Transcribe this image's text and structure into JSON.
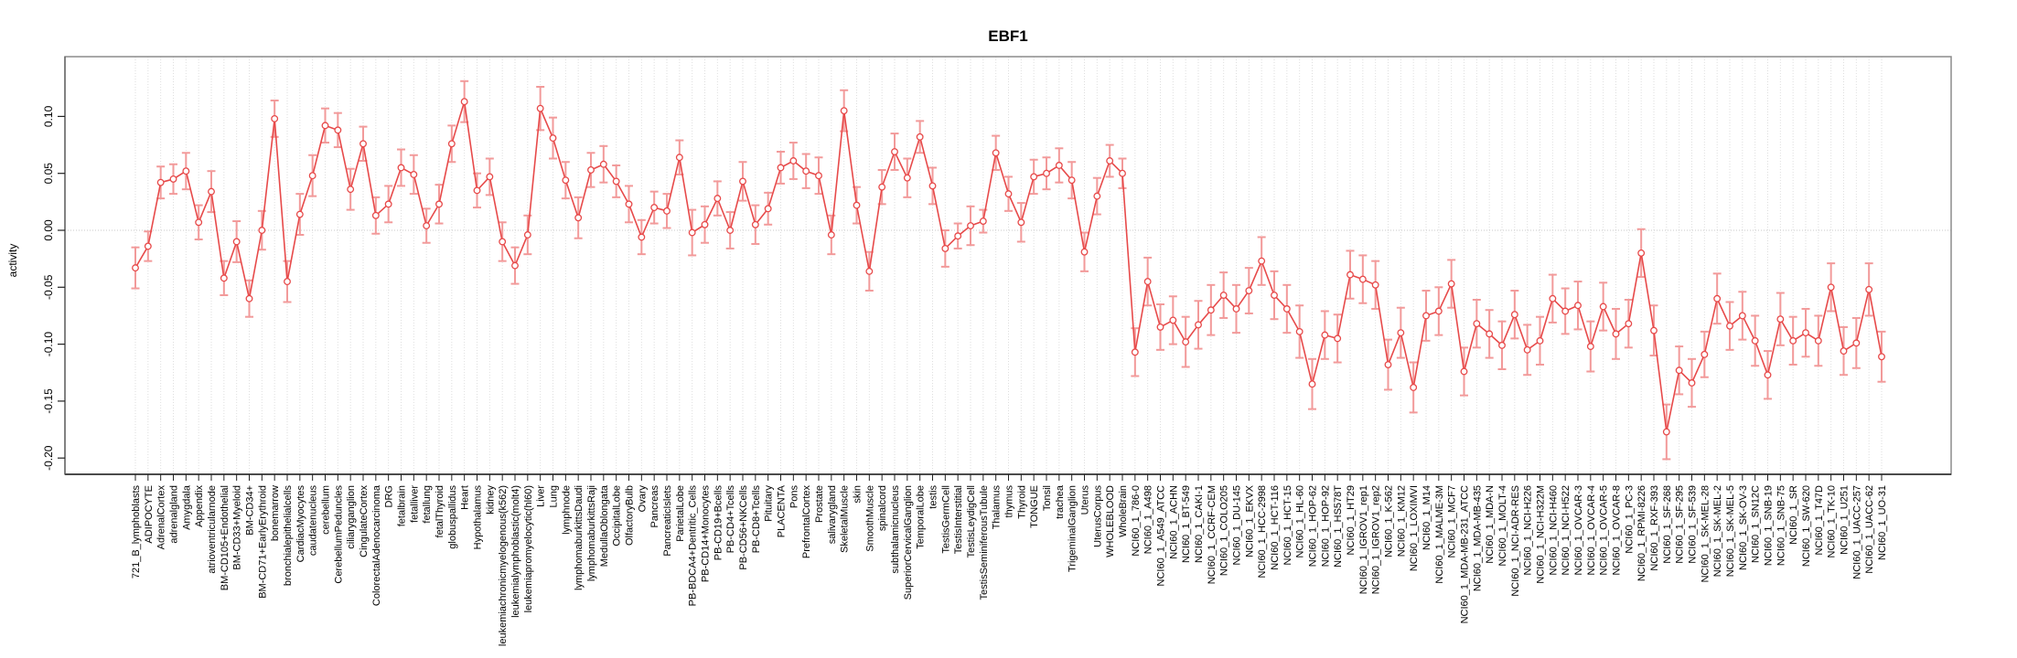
{
  "chart_data": {
    "type": "line",
    "title": "EBF1",
    "xlabel": "",
    "ylabel": "activity",
    "yticks": [
      0.1,
      0.05,
      0.0,
      -0.05,
      -0.1,
      -0.15,
      -0.2
    ],
    "ylim": [
      -0.21,
      0.152
    ],
    "grid": {
      "vertical_dotted_per_category": true,
      "horizontal_dotted_zero_line": true
    },
    "error_bars": true,
    "legend": "none",
    "point_style": "open-circle",
    "colors": {
      "series": "#e74a4a",
      "error_bar": "#f29a9a",
      "point_fill": "#ffffff",
      "grid": "#dedede",
      "zero_line": "#c8c8c8",
      "frame": "#8c8c8c",
      "axis": "#222222",
      "text": "#000000"
    },
    "categories": [
      "721_B_lymphoblasts",
      "ADIPOCYTE",
      "AdrenalCortex",
      "adrenalgland",
      "Amygdala",
      "Appendix",
      "atrioventricularnode",
      "BM-CD105+Endothelial",
      "BM-CD33+Myeloid",
      "BM-CD34+",
      "BM-CD71+EarlyErythroid",
      "bonemarrow",
      "bronchialepithelialcells",
      "CardiacMyocytes",
      "caudatenucleus",
      "cerebellum",
      "CerebellumPeduncles",
      "ciliaryganglion",
      "CingulateCortex",
      "ColorectalAdenocarcinoma",
      "DRG",
      "fetalbrain",
      "fetalliver",
      "fetallung",
      "fetalThyroid",
      "globuspallidus",
      "Heart",
      "Hypothalamus",
      "kidney",
      "leukemiachronicmyelogenous(k562)",
      "leukemialymphoblastic(molt4)",
      "leukemiapromyelocytic(hl60)",
      "Liver",
      "Lung",
      "lymphnode",
      "lymphomaburkittsDaudi",
      "lymphomaburkittsRaji",
      "MedullaOblongata",
      "OccipitalLobe",
      "OlfactoryBulb",
      "Ovary",
      "Pancreas",
      "PancreaticIslets",
      "ParietalLobe",
      "PB-BDCA4+Dentritic_Cells",
      "PB-CD14+Monocytes",
      "PB-CD19+Bcells",
      "PB-CD4+Tcells",
      "PB-CD56+NKCells",
      "PB-CD8+Tcells",
      "Pituitary",
      "PLACENTA",
      "Pons",
      "PrefrontalCortex",
      "Prostate",
      "salivarygland",
      "SkeletalMuscle",
      "skin",
      "SmoothMuscle",
      "spinalcord",
      "subthalamicnucleus",
      "SuperiorCervicalGanglion",
      "TemporalLobe",
      "testis",
      "TestisGermCell",
      "TestisInterstitial",
      "TestisLeydigCell",
      "TestisSeminiferousTubule",
      "Thalamus",
      "thymus",
      "Thyroid",
      "TONGUE",
      "Tonsil",
      "trachea",
      "TrigeminalGanglion",
      "Uterus",
      "UterusCorpus",
      "WHOLEBLOOD",
      "WholeBrain",
      "NCI60_1_786-0",
      "NCI60_1_A498",
      "NCI60_1_A549_ATCC",
      "NCI60_1_ACHN",
      "NCI60_1_BT-549",
      "NCI60_1_CAKI-1",
      "NCI60_1_CCRF-CEM",
      "NCI60_1_COLO205",
      "NCI60_1_DU-145",
      "NCI60_1_EKVX",
      "NCI60_1_HCC-2998",
      "NCI60_1_HCT-116",
      "NCI60_1_HCT-15",
      "NCI60_1_HL-60",
      "NCI60_1_HOP-62",
      "NCI60_1_HOP-92",
      "NCI60_1_HS578T",
      "NCI60_1_HT29",
      "NCI60_1_IGROV1_rep1",
      "NCI60_1_IGROV1_rep2",
      "NCI60_1_K-562",
      "NCI60_1_KM12",
      "NCI60_1_LOXIMVI",
      "NCI60_1_M14",
      "NCI60_1_MALME-3M",
      "NCI60_1_MCF7",
      "NCI60_1_MDA-MB-231_ATCC",
      "NCI60_1_MDA-MB-435",
      "NCI60_1_MDA-N",
      "NCI60_1_MOLT-4",
      "NCI60_1_NCI-ADR-RES",
      "NCI60_1_NCI-H226",
      "NCI60_1_NCI-H322M",
      "NCI60_1_NCI-H460",
      "NCI60_1_NCI-H522",
      "NCI60_1_OVCAR-3",
      "NCI60_1_OVCAR-4",
      "NCI60_1_OVCAR-5",
      "NCI60_1_OVCAR-8",
      "NCI60_1_PC-3",
      "NCI60_1_RPMI-8226",
      "NCI60_1_RXF-393",
      "NCI60_1_SF-268",
      "NCI60_1_SF-295",
      "NCI60_1_SF-539",
      "NCI60_1_SK-MEL-28",
      "NCI60_1_SK-MEL-2",
      "NCI60_1_SK-MEL-5",
      "NCI60_1_SK-OV-3",
      "NCI60_1_SN12C",
      "NCI60_1_SNB-19",
      "NCI60_1_SNB-75",
      "NCI60_1_SR",
      "NCI60_1_SW-620",
      "NCI60_1_T47D",
      "NCI60_1_TK-10",
      "NCI60_1_U251",
      "NCI60_1_UACC-257",
      "NCI60_1_UACC-62",
      "NCI60_1_UO-31"
    ],
    "values": [
      -0.033,
      -0.014,
      0.042,
      0.045,
      0.052,
      0.007,
      0.034,
      -0.042,
      -0.01,
      -0.06,
      0.0,
      0.098,
      -0.045,
      0.014,
      0.048,
      0.092,
      0.088,
      0.036,
      0.076,
      0.013,
      0.023,
      0.055,
      0.049,
      0.004,
      0.023,
      0.076,
      0.113,
      0.035,
      0.047,
      -0.01,
      -0.031,
      -0.004,
      0.107,
      0.081,
      0.044,
      0.011,
      0.053,
      0.058,
      0.043,
      0.023,
      -0.006,
      0.02,
      0.017,
      0.064,
      -0.002,
      0.005,
      0.028,
      0.0,
      0.043,
      0.005,
      0.019,
      0.055,
      0.061,
      0.052,
      0.048,
      -0.004,
      0.105,
      0.022,
      -0.036,
      0.038,
      0.069,
      0.046,
      0.082,
      0.039,
      -0.016,
      -0.005,
      0.004,
      0.008,
      0.068,
      0.032,
      0.007,
      0.047,
      0.05,
      0.057,
      0.044,
      -0.019,
      0.03,
      0.061,
      0.05,
      -0.107,
      -0.045,
      -0.085,
      -0.079,
      -0.098,
      -0.083,
      -0.07,
      -0.057,
      -0.069,
      -0.053,
      -0.027,
      -0.057,
      -0.069,
      -0.089,
      -0.135,
      -0.092,
      -0.095,
      -0.039,
      -0.043,
      -0.048,
      -0.118,
      -0.09,
      -0.138,
      -0.075,
      -0.071,
      -0.047,
      -0.124,
      -0.082,
      -0.091,
      -0.101,
      -0.074,
      -0.105,
      -0.097,
      -0.06,
      -0.071,
      -0.066,
      -0.102,
      -0.067,
      -0.091,
      -0.082,
      -0.02,
      -0.088,
      -0.177,
      -0.123,
      -0.134,
      -0.109,
      -0.06,
      -0.084,
      -0.075,
      -0.097,
      -0.127,
      -0.078,
      -0.097,
      -0.09,
      -0.097,
      -0.05,
      -0.106,
      -0.099,
      -0.052,
      -0.111
    ],
    "errors": [
      0.018,
      0.013,
      0.014,
      0.013,
      0.016,
      0.015,
      0.018,
      0.015,
      0.018,
      0.016,
      0.017,
      0.016,
      0.018,
      0.018,
      0.018,
      0.015,
      0.015,
      0.018,
      0.015,
      0.016,
      0.016,
      0.016,
      0.017,
      0.015,
      0.017,
      0.016,
      0.018,
      0.015,
      0.016,
      0.017,
      0.016,
      0.017,
      0.019,
      0.018,
      0.016,
      0.018,
      0.015,
      0.016,
      0.014,
      0.016,
      0.015,
      0.014,
      0.015,
      0.015,
      0.02,
      0.016,
      0.015,
      0.016,
      0.017,
      0.017,
      0.014,
      0.014,
      0.016,
      0.015,
      0.016,
      0.017,
      0.018,
      0.016,
      0.017,
      0.015,
      0.016,
      0.017,
      0.014,
      0.016,
      0.016,
      0.011,
      0.017,
      0.01,
      0.015,
      0.015,
      0.017,
      0.015,
      0.014,
      0.015,
      0.016,
      0.017,
      0.016,
      0.014,
      0.013,
      0.021,
      0.021,
      0.02,
      0.021,
      0.022,
      0.021,
      0.022,
      0.02,
      0.021,
      0.02,
      0.021,
      0.021,
      0.021,
      0.023,
      0.022,
      0.021,
      0.021,
      0.021,
      0.021,
      0.021,
      0.022,
      0.022,
      0.022,
      0.022,
      0.021,
      0.021,
      0.021,
      0.021,
      0.021,
      0.021,
      0.021,
      0.022,
      0.021,
      0.021,
      0.02,
      0.021,
      0.022,
      0.021,
      0.022,
      0.021,
      0.021,
      0.022,
      0.024,
      0.021,
      0.021,
      0.02,
      0.022,
      0.021,
      0.021,
      0.022,
      0.021,
      0.023,
      0.021,
      0.021,
      0.022,
      0.021,
      0.021,
      0.022,
      0.023,
      0.022
    ]
  }
}
